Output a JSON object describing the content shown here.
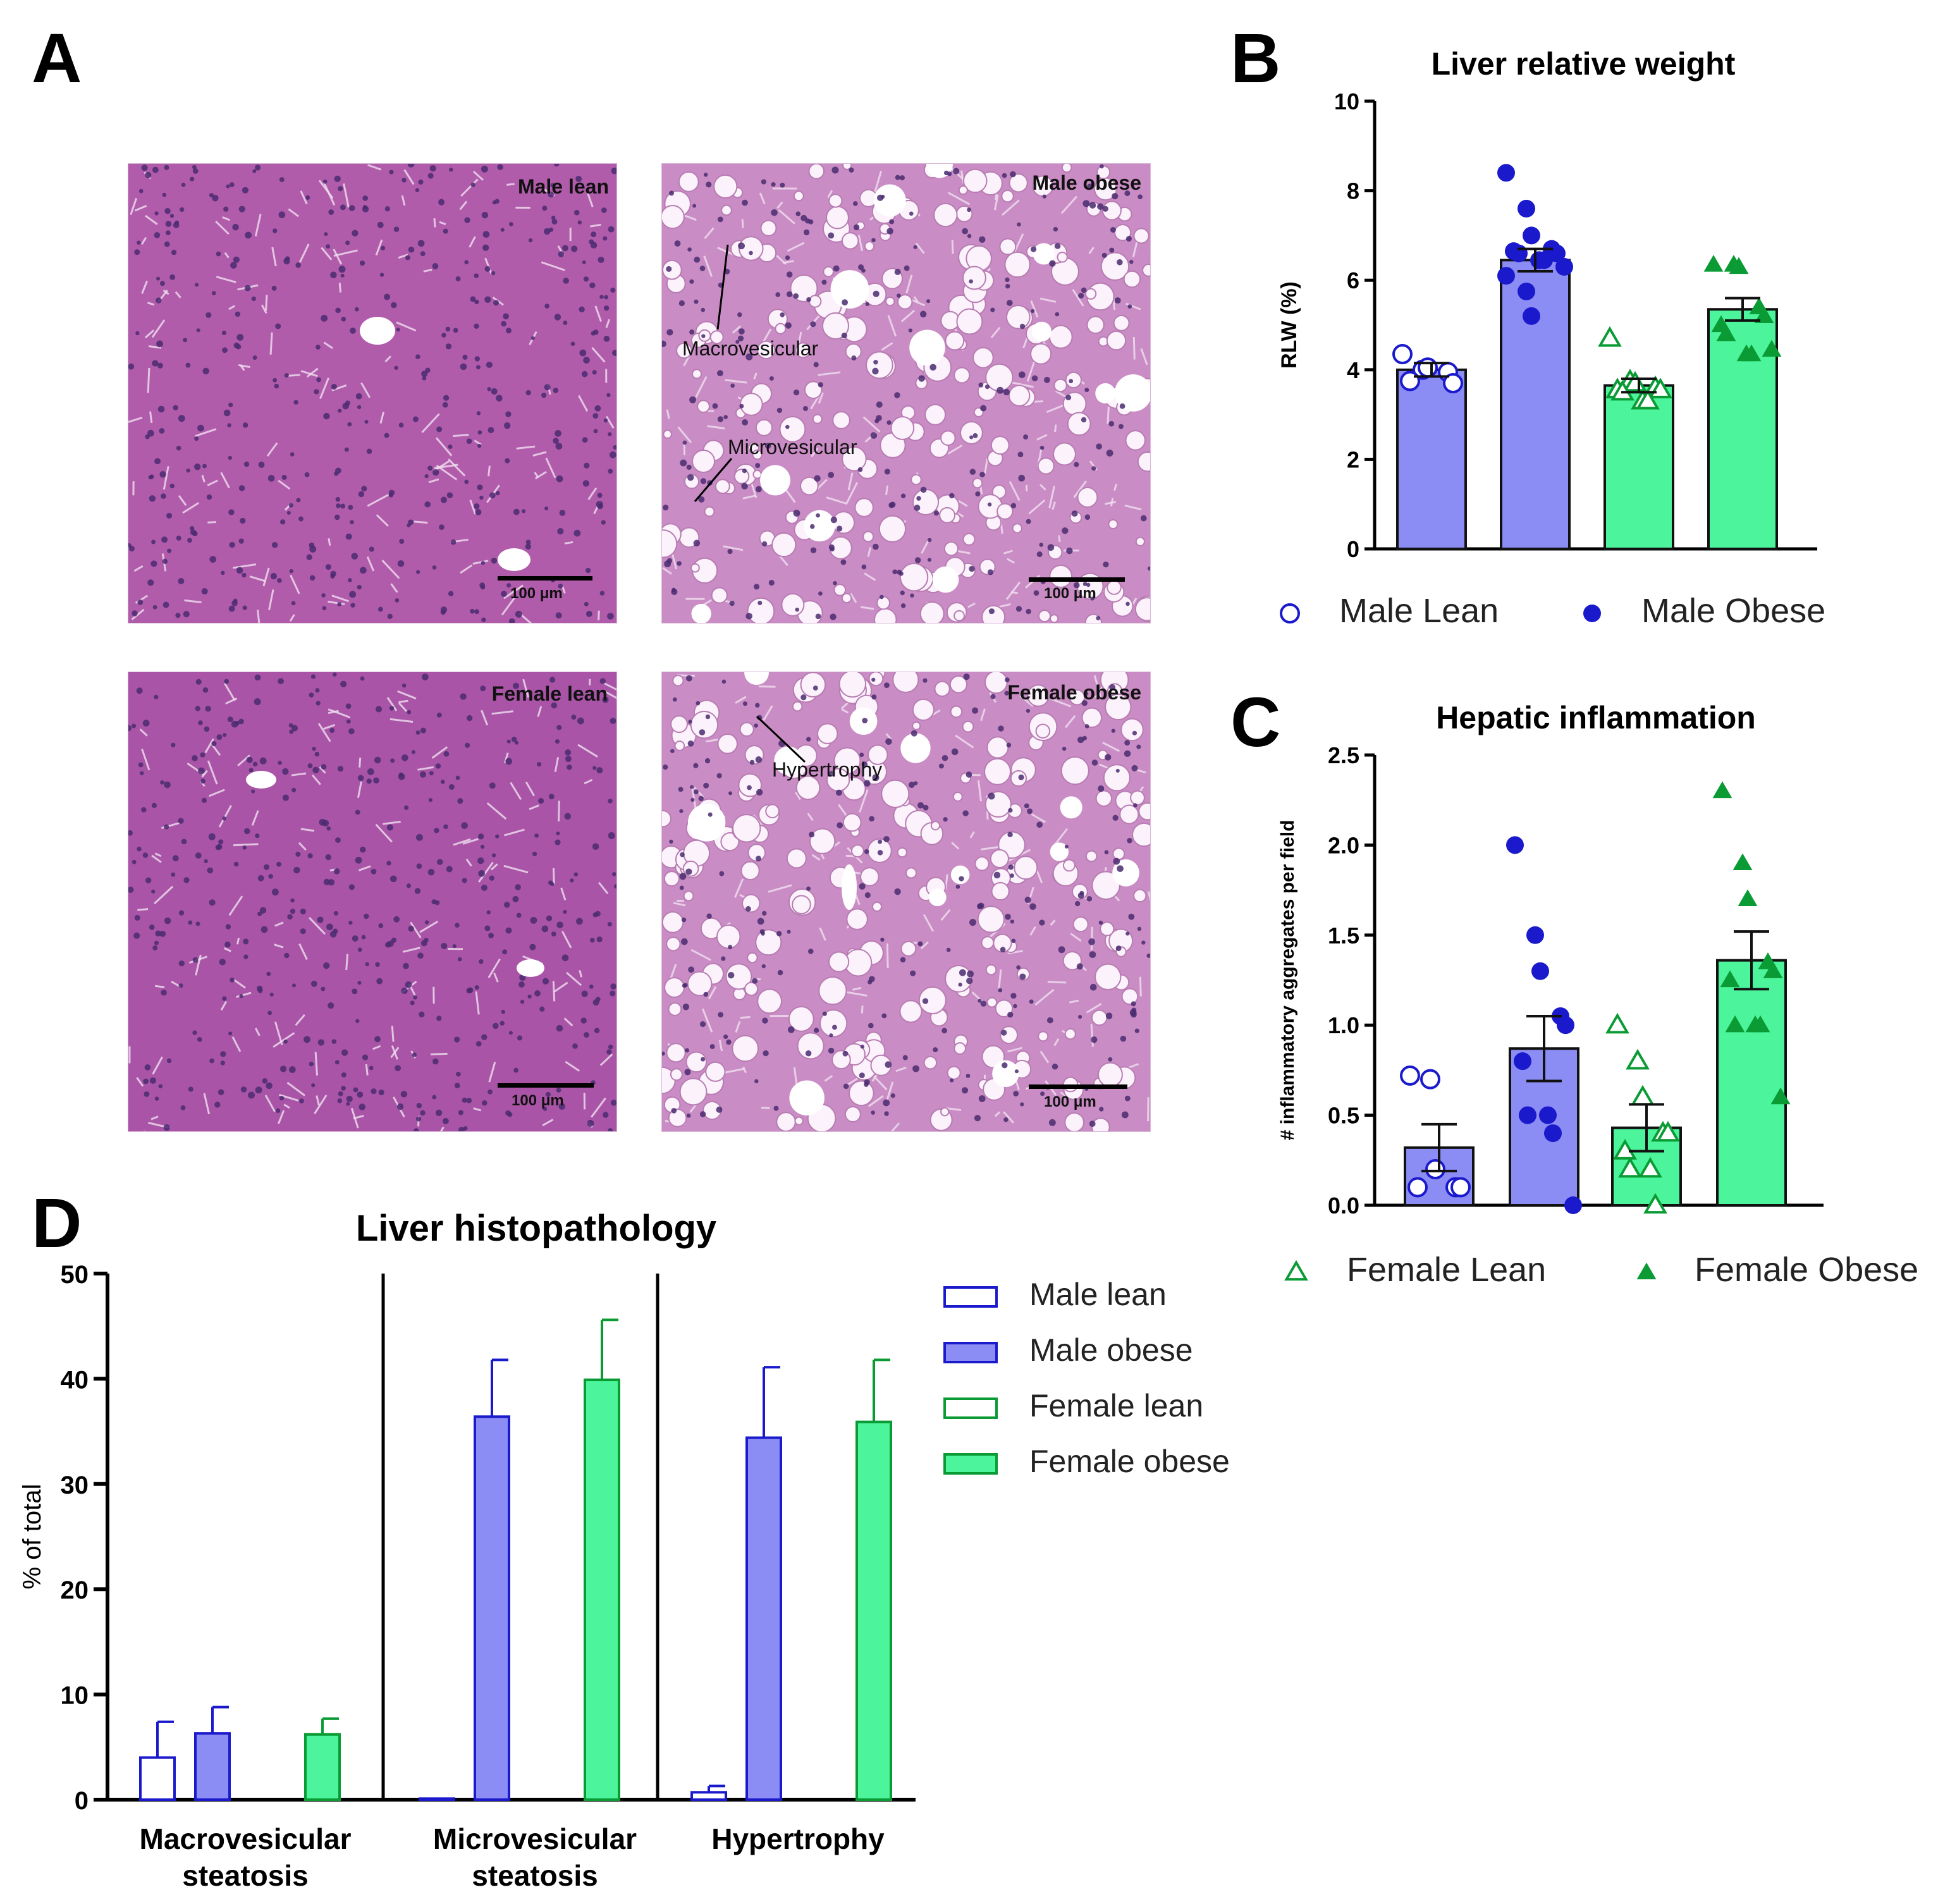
{
  "panels": {
    "A": "A",
    "B": "B",
    "C": "C",
    "D": "D"
  },
  "micrographs": [
    {
      "label": "Male lean",
      "scale": "100 μm",
      "tint": "#b15bab",
      "annotations": []
    },
    {
      "label": "Male obese",
      "scale": "100 μm",
      "tint": "#c98cc4",
      "annotations": [
        "Macrovesicular",
        "Microvesicular"
      ]
    },
    {
      "label": "Female lean",
      "scale": "100 μm",
      "tint": "#a954a6",
      "annotations": []
    },
    {
      "label": "Female obese",
      "scale": "100 μm",
      "tint": "#c98cc4",
      "annotations": [
        "Hypertrophy"
      ]
    }
  ],
  "legend_top": [
    {
      "label": "Male Lean",
      "marker": "circle-open",
      "color": "#1a1acc"
    },
    {
      "label": "Male Obese",
      "marker": "circle-filled",
      "color": "#1a1acc"
    },
    {
      "label": "Female Lean",
      "marker": "triangle-open",
      "color": "#0a9b35"
    },
    {
      "label": "Female Obese",
      "marker": "triangle-filled",
      "color": "#0a9b35"
    }
  ],
  "colors": {
    "male_bar": "#8c8cf5",
    "male_edge": "#1a1acc",
    "female_bar": "#4cf59b",
    "female_edge": "#0a9b35"
  },
  "chart_data": [
    {
      "id": "B",
      "type": "bar",
      "title": "Liver relative weight",
      "ylabel": "RLW (%)",
      "ylim": [
        0,
        10
      ],
      "yticks": [
        "0",
        "2",
        "4",
        "6",
        "8",
        "10"
      ],
      "groups": [
        "Male Lean",
        "Male Obese",
        "Female Lean",
        "Female Obese"
      ],
      "means": [
        4.0,
        6.45,
        3.65,
        5.35
      ],
      "sem": [
        0.15,
        0.25,
        0.15,
        0.25
      ],
      "points": [
        [
          4.35,
          4.0,
          4.05,
          3.95,
          3.7,
          3.75
        ],
        [
          8.4,
          7.6,
          7.0,
          6.7,
          6.6,
          6.65,
          6.6,
          6.45,
          6.45,
          6.3,
          6.1,
          5.75,
          5.2
        ],
        [
          4.7,
          3.75,
          3.7,
          3.6,
          3.55,
          3.55,
          3.5,
          3.3,
          3.3
        ],
        [
          6.35,
          6.35,
          6.3,
          5.4,
          5.2,
          5.0,
          4.8,
          4.35,
          4.35,
          4.45
        ]
      ]
    },
    {
      "id": "C",
      "type": "bar",
      "title": "Hepatic inflammation",
      "ylabel": "# inflammatory aggregates per field",
      "ylim": [
        0,
        2.5
      ],
      "yticks": [
        "0.0",
        "0.5",
        "1.0",
        "1.5",
        "2.0",
        "2.5"
      ],
      "groups": [
        "Male Lean",
        "Male Obese",
        "Female Lean",
        "Female Obese"
      ],
      "means": [
        0.32,
        0.87,
        0.43,
        1.36
      ],
      "sem": [
        0.13,
        0.18,
        0.13,
        0.16
      ],
      "points": [
        [
          0.72,
          0.7,
          0.2,
          0.1,
          0.1,
          0.1
        ],
        [
          2.0,
          1.5,
          1.3,
          1.05,
          1.0,
          0.8,
          0.5,
          0.5,
          0.4,
          0.0
        ],
        [
          1.0,
          0.8,
          0.6,
          0.4,
          0.4,
          0.3,
          0.2,
          0.2,
          0.0
        ],
        [
          2.3,
          1.9,
          1.7,
          1.35,
          1.3,
          1.25,
          1.0,
          1.0,
          1.0,
          0.6
        ]
      ]
    },
    {
      "id": "D",
      "type": "bar",
      "title": "Liver histopathology",
      "ylabel": "% of total",
      "ylim": [
        0,
        50
      ],
      "yticks": [
        "0",
        "10",
        "20",
        "30",
        "40",
        "50"
      ],
      "categories": [
        [
          "Macrovesicular",
          "steatosis"
        ],
        [
          "Microvesicular",
          "steatosis"
        ],
        [
          "Hypertrophy"
        ]
      ],
      "series": [
        {
          "name": "Male lean",
          "values": [
            4.0,
            0.1,
            0.7
          ],
          "err": [
            3.4,
            0.0,
            0.6
          ],
          "fill": "#ffffff",
          "edge": "#1a1acc"
        },
        {
          "name": "Male obese",
          "values": [
            6.3,
            36.4,
            34.4
          ],
          "err": [
            2.5,
            5.4,
            6.7
          ],
          "fill": "#8c8cf5",
          "edge": "#1a1acc"
        },
        {
          "name": "Female lean",
          "values": [
            0,
            0,
            0
          ],
          "err": [
            0,
            0,
            0
          ],
          "fill": "#ffffff",
          "edge": "#0a9b35"
        },
        {
          "name": "Female obese",
          "values": [
            6.2,
            39.9,
            35.9
          ],
          "err": [
            1.5,
            5.7,
            5.9
          ],
          "fill": "#4cf59b",
          "edge": "#0a9b35"
        }
      ]
    }
  ]
}
